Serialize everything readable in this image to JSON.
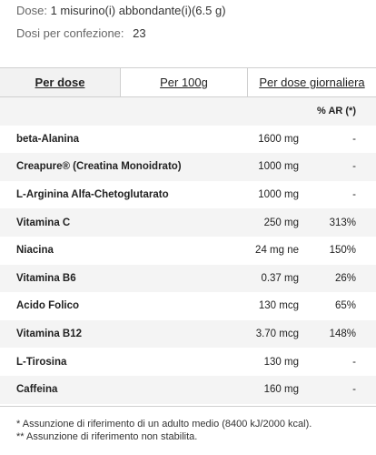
{
  "info": {
    "dose_label": "Dose:",
    "dose_value": "1 misurino(i) abbondante(i)(6.5 g)",
    "servings_label": "Dosi per confezione:",
    "servings_value": "23"
  },
  "tabs": [
    {
      "label": "Per dose",
      "active": true
    },
    {
      "label": "Per 100g",
      "active": false
    },
    {
      "label": "Per dose giornaliera",
      "active": false
    }
  ],
  "table": {
    "ar_header": "% AR (*)",
    "rows": [
      {
        "name": "beta-Alanina",
        "amount": "1600 mg",
        "ar": "-"
      },
      {
        "name": "Creapure® (Creatina Monoidrato)",
        "amount": "1000 mg",
        "ar": "-"
      },
      {
        "name": "L-Arginina Alfa-Chetoglutarato",
        "amount": "1000 mg",
        "ar": "-"
      },
      {
        "name": "Vitamina C",
        "amount": "250 mg",
        "ar": "313%"
      },
      {
        "name": "Niacina",
        "amount": "24 mg ne",
        "ar": "150%"
      },
      {
        "name": "Vitamina B6",
        "amount": "0.37 mg",
        "ar": "26%"
      },
      {
        "name": "Acido Folico",
        "amount": "130 mcg",
        "ar": "65%"
      },
      {
        "name": "Vitamina B12",
        "amount": "3.70 mcg",
        "ar": "148%"
      },
      {
        "name": "L-Tirosina",
        "amount": "130 mg",
        "ar": "-"
      },
      {
        "name": "Caffeina",
        "amount": "160 mg",
        "ar": "-"
      }
    ]
  },
  "notes": [
    "* Assunzione di riferimento di un adulto medio (8400 kJ/2000 kcal).",
    "** Assunzione di riferimento non stabilita."
  ]
}
